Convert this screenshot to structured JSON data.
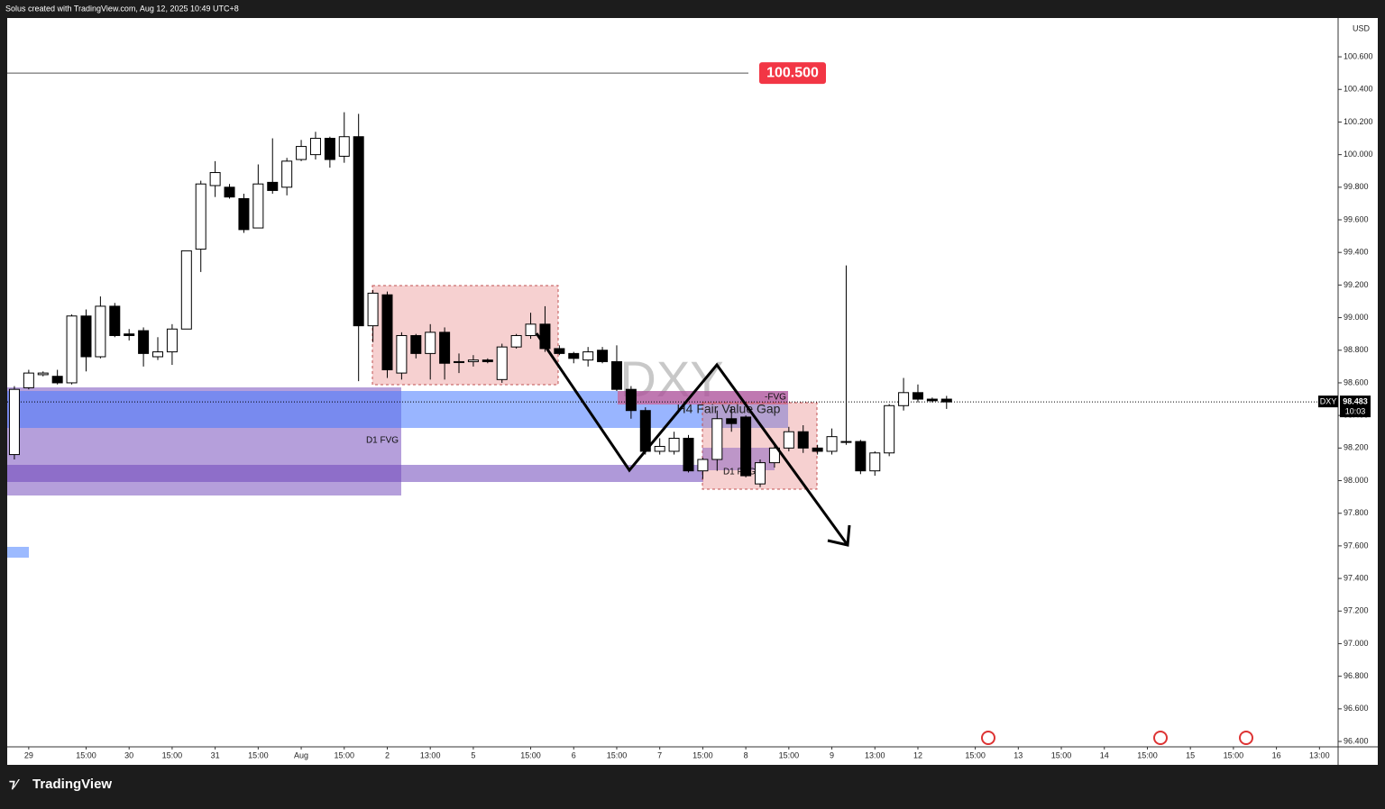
{
  "header": {
    "title": "Solus created with TradingView.com, Aug 12, 2025 10:49 UTC+8"
  },
  "footer": {
    "brand": "TradingView"
  },
  "chart_data": {
    "type": "candlestick",
    "watermark": "DXY",
    "currency": "USD",
    "up_color": "#ffffff",
    "down_color": "#000000",
    "open": [
      98.16,
      98.57,
      98.65,
      98.64,
      98.6,
      99.01,
      98.76,
      99.07,
      98.9,
      98.92,
      98.76,
      98.79,
      98.93,
      99.42,
      99.81,
      99.8,
      99.73,
      99.55,
      99.83,
      99.8,
      99.97,
      100.0,
      100.1,
      99.99,
      100.11,
      98.95,
      99.14,
      98.66,
      98.89,
      98.78,
      98.91,
      98.73,
      98.73,
      98.74,
      98.62,
      98.82,
      98.89,
      98.96,
      98.81,
      98.78,
      98.74,
      98.8,
      98.73,
      98.56,
      98.43,
      98.18,
      98.18,
      98.26,
      98.06,
      98.13,
      98.38,
      98.39,
      97.98,
      98.11,
      98.2,
      98.3,
      98.2,
      98.18,
      98.24,
      98.24,
      98.06,
      98.17,
      98.46,
      98.54,
      98.5,
      98.5
    ],
    "high": [
      98.58,
      98.68,
      98.67,
      98.68,
      99.02,
      99.05,
      99.13,
      99.09,
      98.93,
      98.94,
      98.88,
      98.96,
      99.41,
      99.84,
      99.96,
      99.82,
      99.76,
      99.94,
      100.1,
      99.98,
      100.09,
      100.14,
      100.11,
      100.26,
      100.25,
      99.17,
      99.16,
      98.91,
      98.9,
      98.96,
      98.94,
      98.78,
      98.77,
      98.75,
      98.84,
      98.9,
      99.03,
      99.07,
      98.83,
      98.79,
      98.82,
      98.82,
      98.83,
      98.58,
      98.45,
      98.26,
      98.3,
      98.28,
      98.14,
      98.43,
      98.45,
      98.4,
      98.13,
      98.22,
      98.33,
      98.34,
      98.22,
      98.32,
      99.32,
      98.25,
      98.18,
      98.47,
      98.63,
      98.59,
      98.51,
      98.52
    ],
    "low": [
      98.13,
      98.56,
      98.64,
      98.59,
      98.59,
      98.67,
      98.75,
      98.88,
      98.86,
      98.7,
      98.74,
      98.71,
      98.93,
      99.28,
      99.74,
      99.73,
      99.52,
      99.55,
      99.76,
      99.75,
      99.96,
      99.97,
      99.92,
      99.95,
      98.61,
      98.85,
      98.63,
      98.62,
      98.75,
      98.62,
      98.62,
      98.66,
      98.7,
      98.72,
      98.6,
      98.81,
      98.87,
      98.79,
      98.77,
      98.72,
      98.7,
      98.72,
      98.55,
      98.38,
      98.16,
      98.16,
      98.16,
      98.05,
      98.01,
      98.06,
      98.3,
      98.02,
      97.96,
      98.08,
      98.18,
      98.17,
      98.16,
      98.16,
      98.22,
      98.04,
      98.03,
      98.15,
      98.43,
      98.48,
      98.48,
      98.44
    ],
    "close": [
      98.56,
      98.66,
      98.66,
      98.6,
      99.01,
      98.76,
      99.07,
      98.89,
      98.89,
      98.78,
      98.79,
      98.93,
      99.41,
      99.82,
      99.89,
      99.74,
      99.54,
      99.82,
      99.78,
      99.96,
      100.05,
      100.1,
      99.97,
      100.11,
      98.95,
      99.15,
      98.68,
      98.89,
      98.78,
      98.91,
      98.72,
      98.73,
      98.74,
      98.73,
      98.82,
      98.89,
      98.96,
      98.81,
      98.78,
      98.75,
      98.79,
      98.73,
      98.56,
      98.43,
      98.18,
      98.21,
      98.26,
      98.06,
      98.13,
      98.38,
      98.35,
      98.03,
      98.11,
      98.2,
      98.3,
      98.2,
      98.18,
      98.27,
      98.24,
      98.06,
      98.17,
      98.46,
      98.54,
      98.5,
      98.49,
      98.483
    ],
    "xlim": [
      -0.5,
      92.3
    ],
    "xticks": [
      {
        "value": 1,
        "label": "29"
      },
      {
        "value": 5,
        "label": "15:00"
      },
      {
        "value": 8,
        "label": "30"
      },
      {
        "value": 11,
        "label": "15:00"
      },
      {
        "value": 14,
        "label": "31"
      },
      {
        "value": 17,
        "label": "15:00"
      },
      {
        "value": 20,
        "label": "Aug"
      },
      {
        "value": 23,
        "label": "15:00"
      },
      {
        "value": 26,
        "label": "2"
      },
      {
        "value": 29,
        "label": "13:00"
      },
      {
        "value": 32,
        "label": "5"
      },
      {
        "value": 36,
        "label": "15:00"
      },
      {
        "value": 39,
        "label": "6"
      },
      {
        "value": 42,
        "label": "15:00"
      },
      {
        "value": 45,
        "label": "7"
      },
      {
        "value": 48,
        "label": "15:00"
      },
      {
        "value": 51,
        "label": "8"
      },
      {
        "value": 54,
        "label": "15:00"
      },
      {
        "value": 57,
        "label": "9"
      },
      {
        "value": 60,
        "label": "13:00"
      },
      {
        "value": 63,
        "label": "12"
      },
      {
        "value": 67,
        "label": "15:00"
      },
      {
        "value": 70,
        "label": "13"
      },
      {
        "value": 73,
        "label": "15:00"
      },
      {
        "value": 76,
        "label": "14"
      },
      {
        "value": 79,
        "label": "15:00"
      },
      {
        "value": 82,
        "label": "15"
      },
      {
        "value": 85,
        "label": "15:00"
      },
      {
        "value": 88,
        "label": "16"
      },
      {
        "value": 91,
        "label": "13:00"
      }
    ],
    "ylim": [
      96.367,
      100.838
    ],
    "yticks": [
      {
        "value": 96.4,
        "label": "96.400"
      },
      {
        "value": 96.6,
        "label": "96.600"
      },
      {
        "value": 96.8,
        "label": "96.800"
      },
      {
        "value": 97.0,
        "label": "97.000"
      },
      {
        "value": 97.2,
        "label": "97.200"
      },
      {
        "value": 97.4,
        "label": "97.400"
      },
      {
        "value": 97.6,
        "label": "97.600"
      },
      {
        "value": 97.8,
        "label": "97.800"
      },
      {
        "value": 98.0,
        "label": "98.000"
      },
      {
        "value": 98.2,
        "label": "98.200"
      },
      {
        "value": 98.4,
        "label": "98.400"
      },
      {
        "value": 98.6,
        "label": "98.600"
      },
      {
        "value": 98.8,
        "label": "98.800"
      },
      {
        "value": 99.0,
        "label": "99.000"
      },
      {
        "value": 99.2,
        "label": "99.200"
      },
      {
        "value": 99.4,
        "label": "99.400"
      },
      {
        "value": 99.6,
        "label": "99.600"
      },
      {
        "value": 99.8,
        "label": "99.800"
      },
      {
        "value": 100.0,
        "label": "100.000"
      },
      {
        "value": 100.2,
        "label": "100.200"
      },
      {
        "value": 100.4,
        "label": "100.400"
      },
      {
        "value": 100.6,
        "label": "100.600"
      }
    ],
    "hline": {
      "value": 100.5,
      "label": "100.500"
    },
    "last_price": {
      "symbol": "DXY",
      "value": 98.483,
      "countdown": "10:03"
    },
    "annotations": [
      "D1 FVG",
      "H4 Fair Value Gap",
      "-FVG",
      "D1 FVG"
    ]
  }
}
